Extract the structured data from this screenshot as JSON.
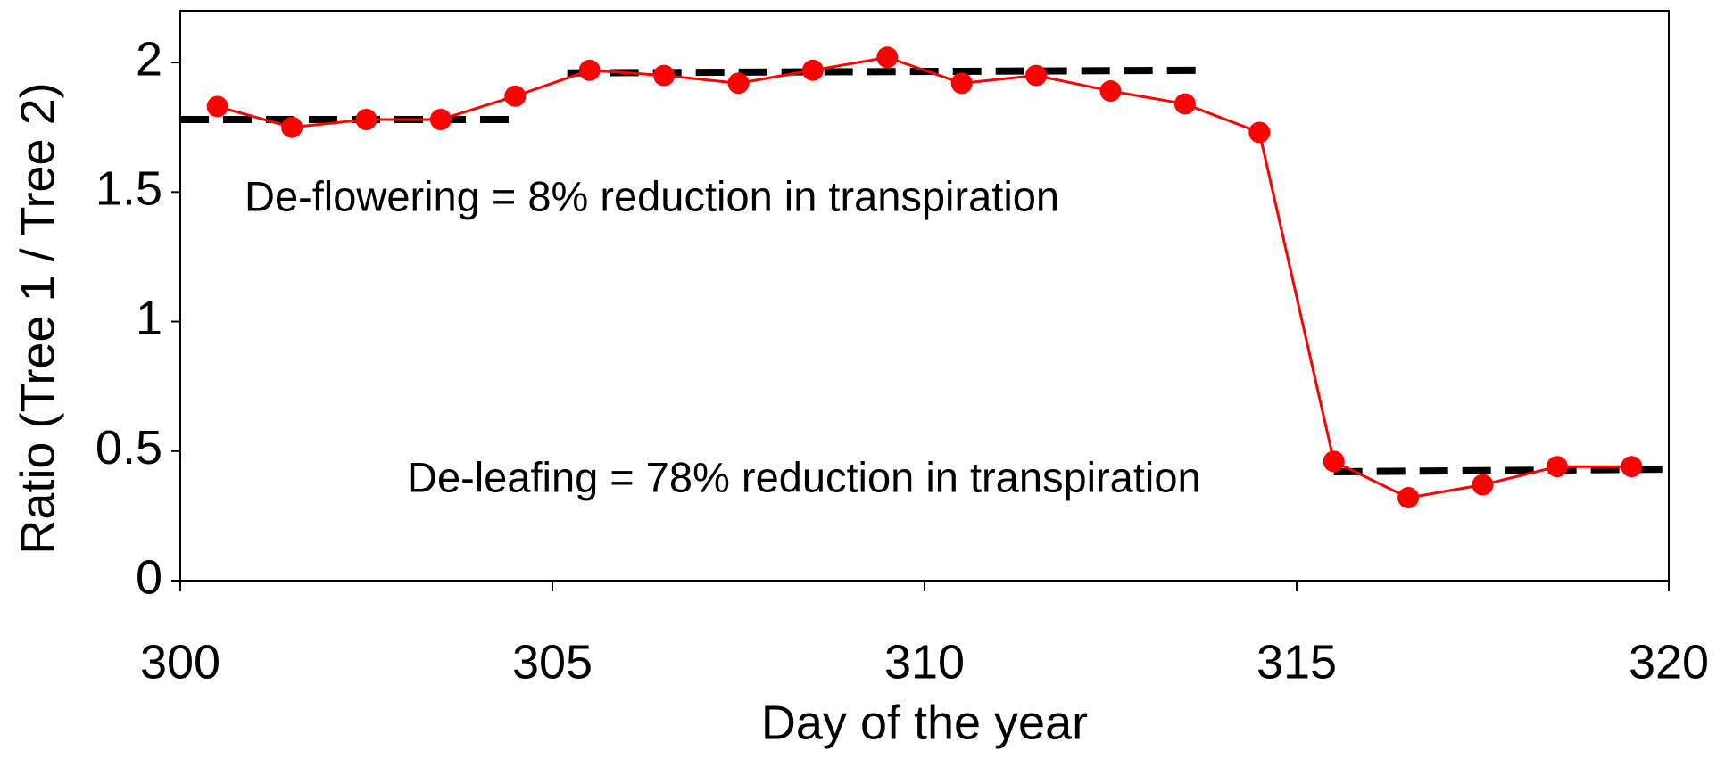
{
  "chart_data": {
    "type": "line",
    "x_label": "Day of the year",
    "y_label": "Ratio (Tree 1 / Tree 2)",
    "annotations": [
      "De-flowering = 8% reduction in transpiration",
      "De-leafing = 78% reduction in transpiration"
    ],
    "x": [
      300.5,
      301.5,
      302.5,
      303.5,
      304.5,
      305.5,
      306.5,
      307.5,
      308.5,
      309.5,
      310.5,
      311.5,
      312.5,
      313.5,
      314.5,
      315.5,
      316.5,
      317.5,
      318.5,
      319.5
    ],
    "series": [
      {
        "color": "#ff0000",
        "values": [
          1.83,
          1.75,
          1.78,
          1.78,
          1.87,
          1.97,
          1.95,
          1.92,
          1.97,
          2.02,
          1.92,
          1.95,
          1.89,
          1.84,
          1.73,
          0.46,
          0.32,
          0.37,
          0.44,
          0.44
        ]
      }
    ],
    "mean_lines": [
      {
        "color": "#000000",
        "x": [
          300,
          304.5
        ],
        "values": [
          1.78,
          1.78
        ]
      },
      {
        "color": "#000000",
        "x": [
          305.2,
          313.8
        ],
        "values": [
          1.96,
          1.97
        ]
      },
      {
        "color": "#000000",
        "x": [
          315.5,
          320
        ],
        "values": [
          0.42,
          0.43
        ]
      }
    ],
    "xlim": [
      300,
      320
    ],
    "xticks": [
      300,
      305,
      310,
      315,
      320
    ],
    "ylim": [
      0,
      2.2
    ],
    "yticks": [
      0,
      0.5,
      1,
      1.5,
      2
    ]
  }
}
